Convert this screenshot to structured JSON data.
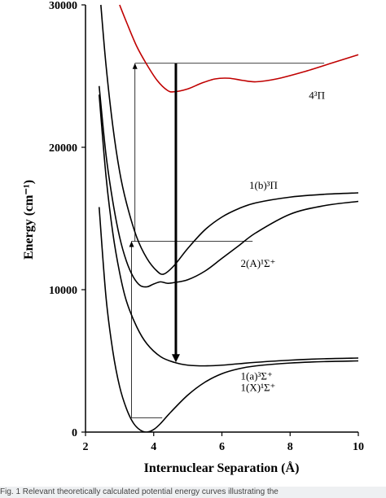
{
  "chart_data": {
    "type": "line",
    "xlabel": "Internuclear Separation (Å)",
    "ylabel": "Energy (cm⁻¹)",
    "xlim": [
      2,
      10
    ],
    "ylim": [
      0,
      30000
    ],
    "xticks": [
      "2",
      "4",
      "6",
      "8",
      "10"
    ],
    "yticks": [
      "0",
      "10000",
      "20000",
      "30000"
    ],
    "grid": false,
    "series": [
      {
        "name": "4³Π",
        "color": "#c00000",
        "x": [
          3.0,
          3.2,
          3.5,
          3.8,
          4.1,
          4.4,
          4.6,
          5.0,
          5.4,
          5.8,
          6.2,
          6.6,
          7.0,
          7.6,
          8.4,
          9.2,
          10.0
        ],
        "y": [
          30000,
          28800,
          27100,
          25800,
          24700,
          24000,
          23900,
          24100,
          24500,
          24800,
          24850,
          24700,
          24600,
          24800,
          25300,
          25900,
          26500
        ]
      },
      {
        "name": "1(b)³Π",
        "color": "#000000",
        "x": [
          2.45,
          2.6,
          2.8,
          3.0,
          3.2,
          3.5,
          3.8,
          4.1,
          4.3,
          4.6,
          5.0,
          5.5,
          6.0,
          6.5,
          7.0,
          8.0,
          9.0,
          10.0
        ],
        "y": [
          30000,
          25800,
          21500,
          18300,
          16100,
          13700,
          12200,
          11300,
          11100,
          11700,
          12900,
          14200,
          15100,
          15700,
          16100,
          16500,
          16700,
          16800
        ]
      },
      {
        "name": "2(A)¹Σ⁺",
        "color": "#000000",
        "x": [
          2.4,
          2.6,
          2.8,
          3.0,
          3.2,
          3.4,
          3.6,
          3.8,
          4.0,
          4.2,
          4.4,
          4.6,
          5.0,
          5.5,
          6.0,
          6.5,
          7.0,
          8.0,
          9.0,
          10.0
        ],
        "y": [
          24300,
          19500,
          16200,
          13700,
          12000,
          10900,
          10300,
          10200,
          10400,
          10550,
          10450,
          10500,
          10700,
          11300,
          12200,
          13100,
          14000,
          15300,
          15900,
          16200
        ]
      },
      {
        "name": "1(a)³Σ⁺",
        "color": "#000000",
        "x": [
          2.4,
          2.6,
          2.8,
          3.0,
          3.2,
          3.5,
          3.8,
          4.2,
          4.6,
          5.0,
          5.5,
          6.0,
          6.5,
          7.0,
          8.0,
          9.0,
          10.0
        ],
        "y": [
          23700,
          18000,
          14000,
          11200,
          9200,
          7400,
          6200,
          5300,
          4900,
          4700,
          4650,
          4700,
          4800,
          4900,
          5050,
          5150,
          5200
        ]
      },
      {
        "name": "1(X)¹Σ⁺",
        "color": "#000000",
        "x": [
          2.4,
          2.6,
          2.8,
          3.0,
          3.2,
          3.4,
          3.6,
          3.8,
          4.0,
          4.2,
          4.5,
          5.0,
          5.5,
          6.0,
          6.5,
          7.0,
          8.0,
          9.0,
          10.0
        ],
        "y": [
          15800,
          9500,
          5700,
          3200,
          1650,
          650,
          150,
          0,
          180,
          600,
          1400,
          2600,
          3500,
          4100,
          4450,
          4650,
          4850,
          4950,
          5000
        ]
      }
    ],
    "annotations": {
      "state_labels": [
        {
          "name": "4³Π",
          "x": 8.55,
          "y": 23400
        },
        {
          "name": "1(b)³Π",
          "x": 6.8,
          "y": 17100
        },
        {
          "name": "2(A)¹Σ⁺",
          "x": 6.55,
          "y": 11600
        },
        {
          "name": "1(a)³Σ⁺",
          "x": 6.55,
          "y": 3700
        },
        {
          "name": "1(X)¹Σ⁺",
          "x": 6.55,
          "y": 2900
        }
      ],
      "thin_lines": [
        {
          "x1": 3.45,
          "y1": 25900,
          "x2": 9.0,
          "y2": 25900
        },
        {
          "x1": 3.45,
          "y1": 25900,
          "x2": 3.45,
          "y2": 13400
        },
        {
          "x1": 3.35,
          "y1": 13400,
          "x2": 6.9,
          "y2": 13400
        },
        {
          "x1": 3.35,
          "y1": 13400,
          "x2": 3.35,
          "y2": 1000
        },
        {
          "x1": 3.35,
          "y1": 1000,
          "x2": 4.25,
          "y2": 1000
        }
      ],
      "small_arrows_up": [
        {
          "x": 3.45,
          "y": 25900
        },
        {
          "x": 3.35,
          "y": 13400
        }
      ],
      "emission_arrow": {
        "x": 4.65,
        "y_from": 25900,
        "y_to": 4900
      }
    }
  },
  "caption": {
    "text": "Fig. 1 Relevant theoretically calculated potential energy curves illustrating the"
  }
}
